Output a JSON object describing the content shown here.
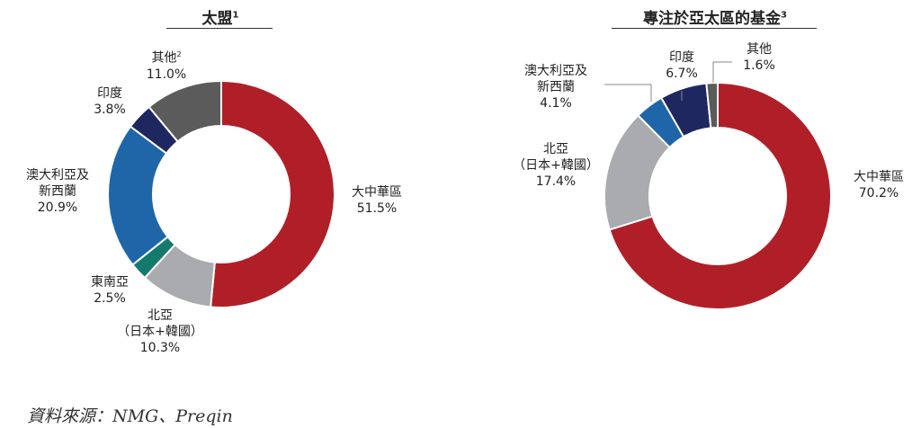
{
  "chart_data": [
    {
      "type": "pie",
      "title": "太盟",
      "title_note": "1",
      "slices": [
        {
          "label": "大中華區",
          "value": 51.5,
          "value_text": "51.5%",
          "color": "#b01f27"
        },
        {
          "label": "北亞",
          "sublabel": "（日本+韓國）",
          "value": 10.3,
          "value_text": "10.3%",
          "color": "#a9abae"
        },
        {
          "label": "東南亞",
          "value": 2.5,
          "value_text": "2.5%",
          "color": "#157a6e"
        },
        {
          "label": "澳大利亞及",
          "label2": "新西蘭",
          "value": 20.9,
          "value_text": "20.9%",
          "color": "#1f66a8"
        },
        {
          "label": "印度",
          "value": 3.8,
          "value_text": "3.8%",
          "color": "#1f2761"
        },
        {
          "label": "其他",
          "note": "2",
          "value": 11.0,
          "value_text": "11.0%",
          "color": "#5b5b5c"
        }
      ]
    },
    {
      "type": "pie",
      "title": "專注於亞太區的基金",
      "title_note": "3",
      "slices": [
        {
          "label": "大中華區",
          "value": 70.2,
          "value_text": "70.2%",
          "color": "#b01f27"
        },
        {
          "label": "北亞",
          "sublabel": "（日本+韓國）",
          "value": 17.4,
          "value_text": "17.4%",
          "color": "#a9abae"
        },
        {
          "label": "澳大利亞及",
          "label2": "新西蘭",
          "value": 4.1,
          "value_text": "4.1%",
          "color": "#1f66a8"
        },
        {
          "label": "印度",
          "value": 6.7,
          "value_text": "6.7%",
          "color": "#1f2761"
        },
        {
          "label": "其他",
          "value": 1.6,
          "value_text": "1.6%",
          "color": "#5b5b5c"
        }
      ]
    }
  ],
  "source_text": "資料來源：NMG、Preqin"
}
